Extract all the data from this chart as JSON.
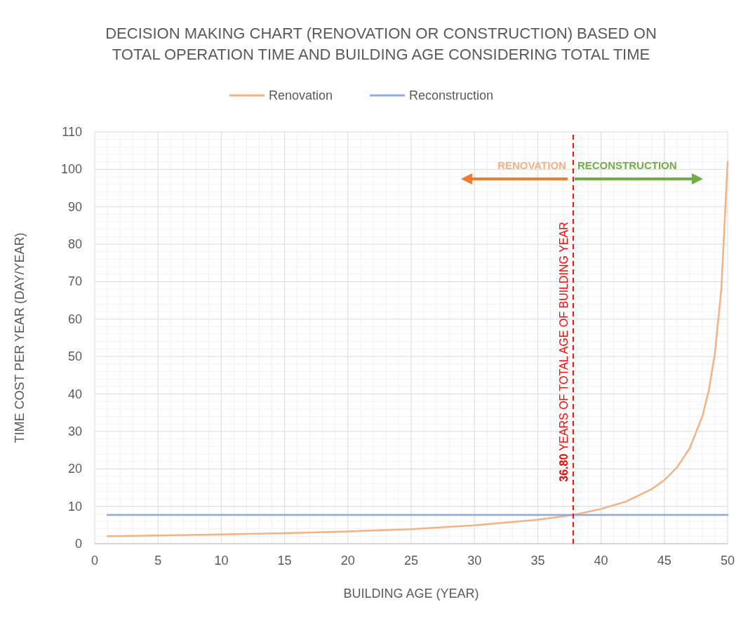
{
  "chart_data": {
    "type": "line",
    "title": "DECISION MAKING CHART (RENOVATION OR CONSTRUCTION) BASED ON\nTOTAL OPERATION TIME AND BUILDING AGE CONSIDERING TOTAL TIME",
    "xlabel": "BUILDING AGE (YEAR)",
    "ylabel": "TIME COST PER YEAR  (DAY/YEAR)",
    "series": [
      {
        "name": "Renovation",
        "color": "#f4b183",
        "x": [
          1,
          5,
          10,
          15,
          20,
          25,
          30,
          35,
          37.8,
          40,
          42,
          44,
          45,
          46,
          47,
          48,
          48.5,
          49,
          49.5,
          50
        ],
        "values": [
          2.0,
          2.2,
          2.5,
          2.8,
          3.3,
          3.9,
          4.9,
          6.4,
          7.7,
          9.3,
          11.3,
          14.6,
          17,
          20.4,
          25.5,
          34,
          40.8,
          51,
          68,
          102
        ]
      },
      {
        "name": "Reconstruction",
        "color": "#8faadc",
        "x": [
          1,
          50
        ],
        "values": [
          7.7,
          7.7
        ]
      }
    ],
    "xlim": [
      0,
      50
    ],
    "xticks": [
      0,
      5,
      10,
      15,
      20,
      25,
      30,
      35,
      40,
      45,
      50
    ],
    "ylim": [
      0,
      110
    ],
    "yticks": [
      0,
      10,
      20,
      30,
      40,
      50,
      60,
      70,
      80,
      90,
      100,
      110
    ],
    "grid": true,
    "legend": "top",
    "marker": "none",
    "line_style": "solid",
    "ref_lines": [
      {
        "axis": "x",
        "value": 37.8,
        "label": "36.80 YEARS OF TOTAL AGE OF BUILDING YEAR",
        "color": "#ff0000",
        "line_style": "dashed"
      }
    ],
    "annotations": [
      "RENOVATION",
      "RECONSTRUCTION"
    ]
  }
}
